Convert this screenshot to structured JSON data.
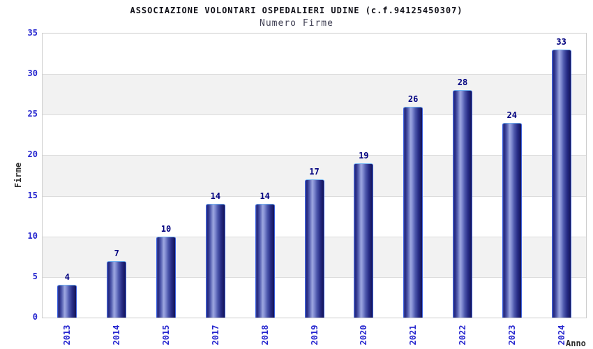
{
  "header": {
    "title": "ASSOCIAZIONE VOLONTARI OSPEDALIERI UDINE (c.f.94125450307)",
    "subtitle": "Numero Firme"
  },
  "chart_data": {
    "type": "bar",
    "title": "ASSOCIAZIONE VOLONTARI OSPEDALIERI UDINE (c.f.94125450307)",
    "subtitle": "Numero Firme",
    "categories": [
      "2013",
      "2014",
      "2015",
      "2017",
      "2018",
      "2019",
      "2020",
      "2021",
      "2022",
      "2023",
      "2024"
    ],
    "values": [
      4,
      7,
      10,
      14,
      14,
      17,
      19,
      26,
      28,
      24,
      33
    ],
    "xlabel": "Anno",
    "ylabel": "Firme",
    "ylim": [
      0,
      35
    ],
    "y_ticks": [
      0,
      5,
      10,
      15,
      20,
      25,
      30,
      35
    ],
    "grid": "horizontal-bands-alternating",
    "legend": "none",
    "bar_value_labels_shown": true
  },
  "colors": {
    "tick_label": "#2626cf",
    "bar_value_label": "#00007f",
    "title": "#101018",
    "subtitle": "#3e3e52",
    "axis_title": "#2e2e2e",
    "bar_border": "#3d63e0",
    "bar_gradient_dark": "#131357",
    "bar_gradient_light": "#9da7e0",
    "band_gray": "#f2f2f2",
    "gridline": "#dcdcdc",
    "plot_border": "#cccccc",
    "background": "#ffffff"
  }
}
